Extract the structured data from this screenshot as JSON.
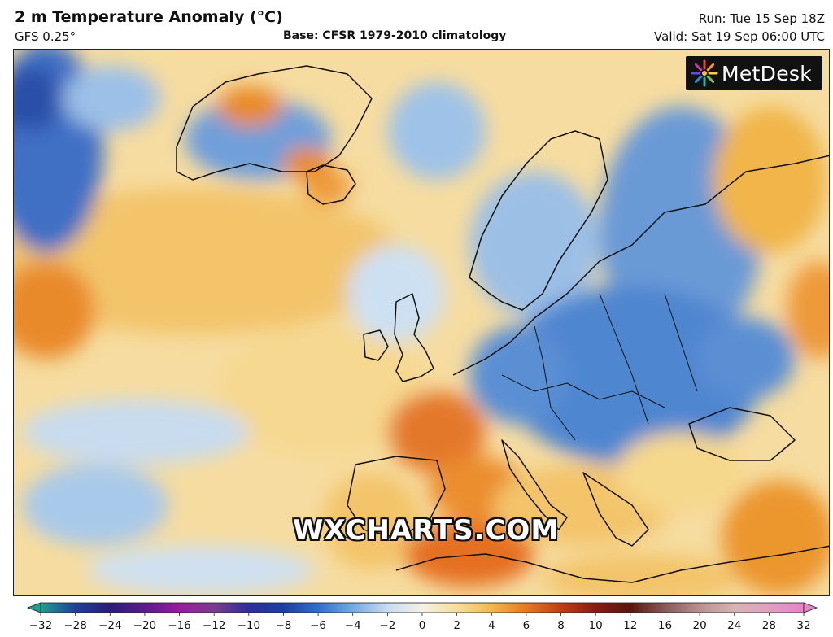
{
  "header": {
    "title": "2 m Temperature Anomaly (°C)",
    "model": "GFS 0.25°",
    "base": "Base: CFSR 1979-2010 climatology",
    "run": "Run: Tue 15 Sep 18Z",
    "valid": "Valid: Sat 19 Sep 06:00 UTC"
  },
  "logo": {
    "text": "MetDesk"
  },
  "watermark": "WXCHARTS.COM",
  "colorbar": {
    "ticks": [
      "−32",
      "−28",
      "−24",
      "−20",
      "−16",
      "−12",
      "−10",
      "−8",
      "−6",
      "−4",
      "−2",
      "0",
      "2",
      "4",
      "6",
      "8",
      "10",
      "12",
      "16",
      "20",
      "24",
      "28",
      "32"
    ],
    "colors": [
      "#1e9e8e",
      "#1f3f9a",
      "#2a1c7a",
      "#5a1b8f",
      "#9a1aa0",
      "#7a3d8c",
      "#2d2d9e",
      "#1c3ea6",
      "#2e6fd0",
      "#74aae2",
      "#c8ddf0",
      "#f4f0e6",
      "#f6df9a",
      "#f2b84a",
      "#e8781e",
      "#c43c12",
      "#8a1a14",
      "#5a1410",
      "#8a5a5a",
      "#b89090",
      "#d8b4b4",
      "#e0a0c0",
      "#e684c8"
    ]
  }
}
